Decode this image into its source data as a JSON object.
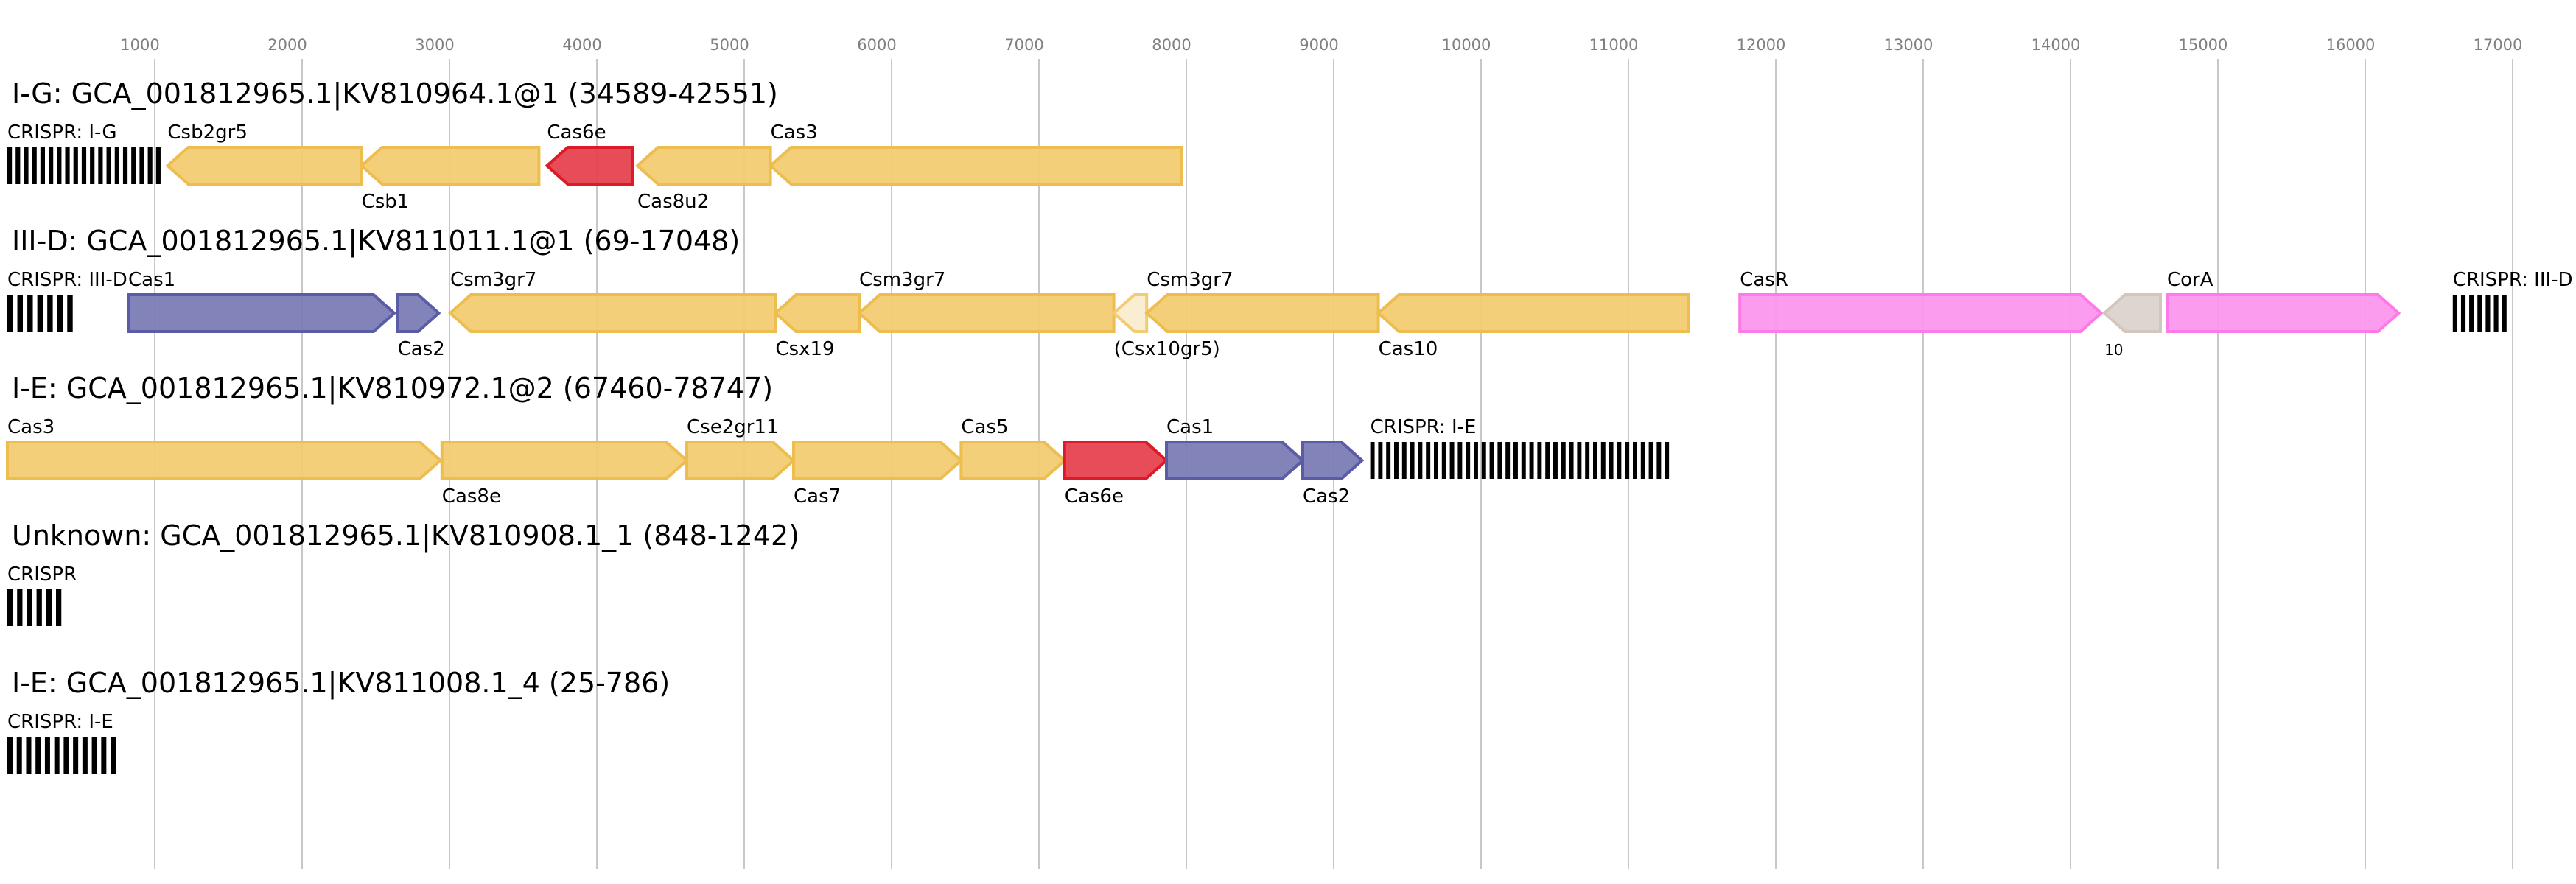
{
  "axis": {
    "ticks": [
      1000,
      2000,
      3000,
      4000,
      5000,
      6000,
      7000,
      8000,
      9000,
      10000,
      11000,
      12000,
      13000,
      14000,
      15000,
      16000,
      17000
    ]
  },
  "colors": {
    "yellow": {
      "fill": "#f2cc72",
      "stroke": "#edbe4f"
    },
    "red": {
      "fill": "#e5434f",
      "stroke": "#dc1a28"
    },
    "purple": {
      "fill": "#7b7db5",
      "stroke": "#5a5ca6"
    },
    "pink": {
      "fill": "#fc97ed",
      "stroke": "#fd7ae8"
    },
    "gray": {
      "fill": "#dbd3cc",
      "stroke": "#d2c6bd"
    },
    "light": {
      "fill": "#faedd0",
      "stroke": "#f2cc72"
    }
  },
  "loci": [
    {
      "title": "I-G: GCA_001812965.1|KV810964.1@1 (34589-42551)",
      "features": [
        {
          "label": "CRISPR: I-G",
          "type": "crispr",
          "start": 0,
          "end": 1065,
          "repeats": 19,
          "pos": "above"
        },
        {
          "label": "Csb2gr5",
          "start": 1087,
          "end": 2403,
          "strand": "-",
          "color": "yellow",
          "pos": "above"
        },
        {
          "label": "Csb1",
          "start": 2403,
          "end": 3607,
          "strand": "-",
          "color": "yellow",
          "pos": "below"
        },
        {
          "label": "Cas6e",
          "start": 3662,
          "end": 4242,
          "strand": "-",
          "color": "red",
          "pos": "above"
        },
        {
          "label": "Cas8u2",
          "start": 4275,
          "end": 5178,
          "strand": "-",
          "color": "yellow",
          "pos": "below"
        },
        {
          "label": "Cas3",
          "start": 5178,
          "end": 7965,
          "strand": "-",
          "color": "yellow",
          "pos": "above"
        }
      ]
    },
    {
      "title": "III-D: GCA_001812965.1|KV811011.1@1 (69-17048)",
      "features": [
        {
          "label": "CRISPR: III-D",
          "type": "crispr",
          "start": 0,
          "end": 474,
          "repeats": 7,
          "pos": "above"
        },
        {
          "label": "Cas1",
          "start": 820,
          "end": 2625,
          "strand": "+",
          "color": "purple",
          "pos": "above"
        },
        {
          "label": "Cas2",
          "start": 2648,
          "end": 2927,
          "strand": "+",
          "color": "purple",
          "pos": "below"
        },
        {
          "label": "Csm3gr7",
          "start": 3005,
          "end": 5212,
          "strand": "-",
          "color": "yellow",
          "pos": "above"
        },
        {
          "label": "Csx19",
          "start": 5212,
          "end": 5780,
          "strand": "-",
          "color": "yellow",
          "pos": "below"
        },
        {
          "label": "Csm3gr7",
          "start": 5780,
          "end": 7508,
          "strand": "-",
          "color": "yellow",
          "pos": "above"
        },
        {
          "label": "(Csx10gr5)",
          "start": 7508,
          "end": 7731,
          "strand": "-",
          "color": "light",
          "pos": "below"
        },
        {
          "label": "Csm3gr7",
          "start": 7731,
          "end": 9303,
          "strand": "-",
          "color": "yellow",
          "pos": "above"
        },
        {
          "label": "Cas10",
          "start": 9303,
          "end": 11410,
          "strand": "-",
          "color": "yellow",
          "pos": "below"
        },
        {
          "label": "CasR",
          "start": 11756,
          "end": 14208,
          "strand": "+",
          "color": "pink",
          "pos": "above"
        },
        {
          "label": "10",
          "start": 14230,
          "end": 14610,
          "strand": "-",
          "color": "gray",
          "pos": "below",
          "small": true
        },
        {
          "label": "CorA",
          "start": 14655,
          "end": 16226,
          "strand": "+",
          "color": "pink",
          "pos": "above"
        },
        {
          "label": "CRISPR: III-D",
          "type": "crispr",
          "start": 16594,
          "end": 16984,
          "repeats": 7,
          "pos": "above"
        }
      ]
    },
    {
      "title": "I-E: GCA_001812965.1|KV810972.1@2 (67460-78747)",
      "features": [
        {
          "label": "Cas3",
          "start": 0,
          "end": 2938,
          "strand": "+",
          "color": "yellow",
          "pos": "above"
        },
        {
          "label": "Cas8e",
          "start": 2949,
          "end": 4610,
          "strand": "+",
          "color": "yellow",
          "pos": "below"
        },
        {
          "label": "Cse2gr11",
          "start": 4610,
          "end": 5335,
          "strand": "+",
          "color": "yellow",
          "pos": "above"
        },
        {
          "label": "Cas7",
          "start": 5335,
          "end": 6472,
          "strand": "+",
          "color": "yellow",
          "pos": "below"
        },
        {
          "label": "Cas5",
          "start": 6472,
          "end": 7174,
          "strand": "+",
          "color": "yellow",
          "pos": "above"
        },
        {
          "label": "Cas6e",
          "start": 7174,
          "end": 7865,
          "strand": "+",
          "color": "red",
          "pos": "below"
        },
        {
          "label": "Cas1",
          "start": 7865,
          "end": 8790,
          "strand": "+",
          "color": "purple",
          "pos": "above"
        },
        {
          "label": "Cas2",
          "start": 8790,
          "end": 9192,
          "strand": "+",
          "color": "purple",
          "pos": "below"
        },
        {
          "label": "CRISPR: I-E",
          "type": "crispr",
          "start": 9248,
          "end": 11300,
          "repeats": 38,
          "pos": "above"
        }
      ]
    },
    {
      "title": "Unknown: GCA_001812965.1|KV810908.1_1 (848-1242)",
      "features": [
        {
          "label": "CRISPR",
          "type": "crispr",
          "start": 0,
          "end": 396,
          "repeats": 6,
          "pos": "above"
        }
      ]
    },
    {
      "title": "I-E: GCA_001812965.1|KV811008.1_4 (25-786)",
      "features": [
        {
          "label": "CRISPR: I-E",
          "type": "crispr",
          "start": 0,
          "end": 764,
          "repeats": 12,
          "pos": "above"
        }
      ]
    }
  ]
}
